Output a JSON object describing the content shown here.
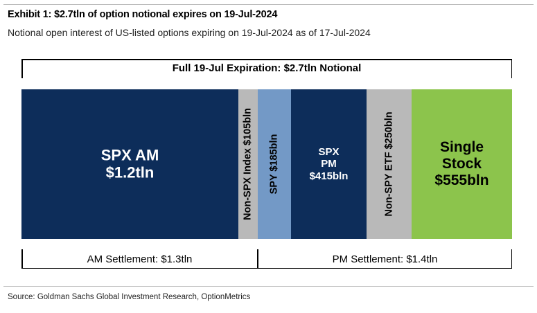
{
  "title": "Exhibit 1: $2.7tln of option notional expires on 19-Jul-2024",
  "subtitle": "Notional open interest of US-listed options expiring on 19-Jul-2024 as of 17-Jul-2024",
  "top_bracket_label": "Full 19-Jul Expiration: $2.7tln Notional",
  "bottom_brackets": [
    {
      "label": "AM Settlement: $1.3tln"
    },
    {
      "label": "PM Settlement: $1.4tln"
    }
  ],
  "source": "Source: Goldman Sachs Global Investment Research, OptionMetrics",
  "colors": {
    "navy": "#0d2d5a",
    "gray": "#b9b9b9",
    "blue": "#7399c6",
    "green": "#8cc44c",
    "rule": "#bdbdbd"
  },
  "chart_data": {
    "type": "bar",
    "subtype": "stacked-horizontal-segments",
    "unit": "USD notional",
    "segments": [
      {
        "name": "SPX AM",
        "label_lines": [
          "SPX AM",
          "$1.2tln"
        ],
        "value_bln": 1200,
        "color": "#0d2d5a",
        "text_color": "#ffffff",
        "rotated": false,
        "font_size": 22
      },
      {
        "name": "Non-SPX Index",
        "label_lines": [
          "Non-SPX Index $105bln"
        ],
        "value_bln": 105,
        "color": "#b9b9b9",
        "text_color": "#000000",
        "rotated": true,
        "font_size": 14.5
      },
      {
        "name": "SPY",
        "label_lines": [
          "SPY $185bln"
        ],
        "value_bln": 185,
        "color": "#7399c6",
        "text_color": "#000000",
        "rotated": true,
        "font_size": 14.5
      },
      {
        "name": "SPX PM",
        "label_lines": [
          "SPX",
          "PM",
          "$415bln"
        ],
        "value_bln": 415,
        "color": "#0d2d5a",
        "text_color": "#ffffff",
        "rotated": false,
        "font_size": 15
      },
      {
        "name": "Non-SPY ETF",
        "label_lines": [
          "Non-SPY ETF $250bln"
        ],
        "value_bln": 250,
        "color": "#b9b9b9",
        "text_color": "#000000",
        "rotated": true,
        "font_size": 14.5
      },
      {
        "name": "Single Stock",
        "label_lines": [
          "Single",
          "Stock",
          "$555bln"
        ],
        "value_bln": 555,
        "color": "#8cc44c",
        "text_color": "#000000",
        "rotated": false,
        "font_size": 21
      }
    ]
  }
}
